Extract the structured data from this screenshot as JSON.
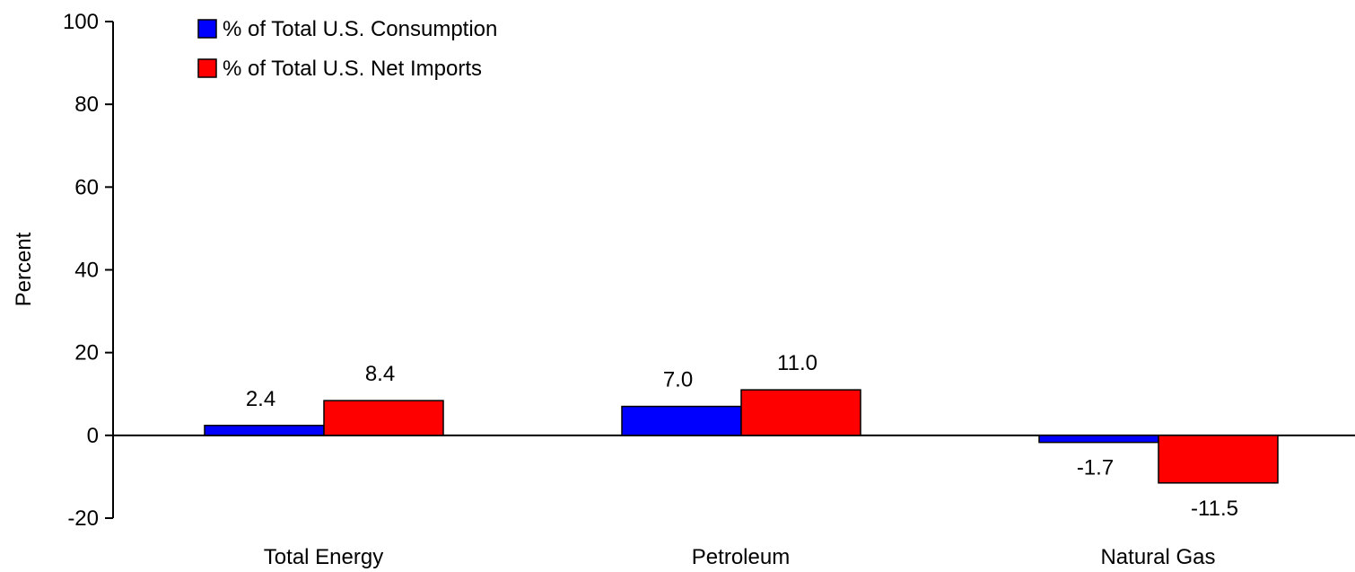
{
  "chart_data": {
    "type": "bar",
    "title": "",
    "xlabel": "",
    "ylabel": "Percent",
    "ylim": [
      -20,
      100
    ],
    "yticks": [
      -20,
      0,
      20,
      40,
      60,
      80,
      100
    ],
    "categories": [
      "Total Energy",
      "Petroleum",
      "Natural Gas"
    ],
    "series": [
      {
        "name": "% of Total U.S. Consumption",
        "color": "#0000ff",
        "values": [
          2.4,
          7.0,
          -1.7
        ],
        "labels": [
          "2.4",
          "7.0",
          "-1.7"
        ]
      },
      {
        "name": "% of Total U.S. Net Imports",
        "color": "#ff0000",
        "values": [
          8.4,
          11.0,
          -11.5
        ],
        "labels": [
          "8.4",
          "11.0",
          "-11.5"
        ]
      }
    ],
    "legend_position": "top-left",
    "grid": false
  }
}
